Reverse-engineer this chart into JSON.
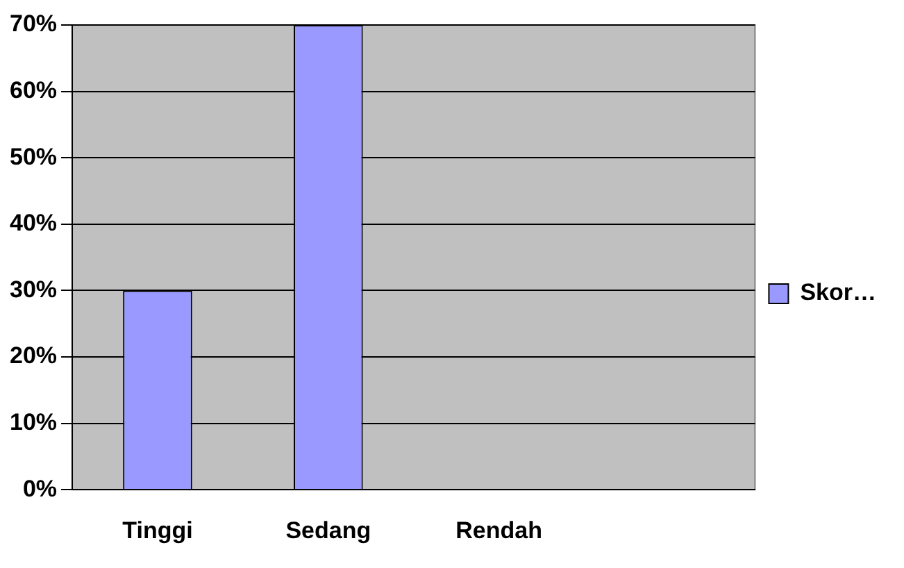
{
  "chart_data": {
    "type": "bar",
    "categories": [
      "Tinggi",
      "Sedang",
      "Rendah",
      null
    ],
    "series": [
      {
        "name": "Skor…",
        "color": "#9999ff",
        "values": [
          30,
          70,
          0,
          null
        ]
      }
    ],
    "ylim": [
      0,
      70
    ],
    "yticks": [
      {
        "value": 0,
        "label": "0%"
      },
      {
        "value": 10,
        "label": "10%"
      },
      {
        "value": 20,
        "label": "20%"
      },
      {
        "value": 30,
        "label": "30%"
      },
      {
        "value": 40,
        "label": "40%"
      },
      {
        "value": 50,
        "label": "50%"
      },
      {
        "value": 60,
        "label": "60%"
      },
      {
        "value": 70,
        "label": "70%"
      }
    ],
    "grid": "y",
    "legend": "right"
  }
}
